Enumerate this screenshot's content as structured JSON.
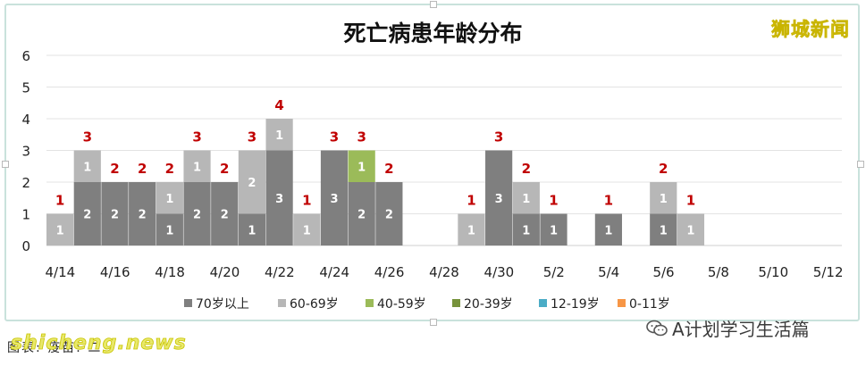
{
  "watermark_top": "狮城新闻",
  "caption": "图表: 疫苗: 二",
  "site_watermark": "shicheng.news",
  "wechat_name": "A计划学习生活篇",
  "colors": {
    "c70": "#7f7f7f",
    "c60": "#b7b7b7",
    "c40": "#9bbb59",
    "c20": "#77933c",
    "c12": "#4bacc6",
    "c0": "#f79646",
    "total_label": "#c00000"
  },
  "chart_data": {
    "type": "bar",
    "stacked": true,
    "title": "死亡病患年龄分布",
    "ylim": [
      0,
      6
    ],
    "yticks": [
      "0",
      "1",
      "2",
      "3",
      "4",
      "5",
      "6"
    ],
    "grid": true,
    "legend_position": "bottom",
    "xtick_labels": [
      "4/14",
      "4/16",
      "4/18",
      "4/20",
      "4/22",
      "4/24",
      "4/26",
      "4/28",
      "4/30",
      "5/2",
      "5/4",
      "5/6",
      "5/8",
      "5/10",
      "5/12"
    ],
    "categories": [
      "4/14",
      "4/15",
      "4/16",
      "4/17",
      "4/18",
      "4/19",
      "4/20",
      "4/21",
      "4/22",
      "4/23",
      "4/24",
      "4/25",
      "4/26",
      "4/27",
      "4/28",
      "4/29",
      "4/30",
      "5/1",
      "5/2",
      "5/3",
      "5/4",
      "5/5",
      "5/6",
      "5/7",
      "5/8",
      "5/9",
      "5/10",
      "5/11",
      "5/12"
    ],
    "series": [
      {
        "name": "70岁以上",
        "color_key": "c70",
        "values": [
          0,
          2,
          2,
          2,
          1,
          2,
          2,
          1,
          3,
          0,
          3,
          2,
          2,
          0,
          0,
          0,
          3,
          1,
          1,
          0,
          1,
          0,
          1,
          0,
          0,
          0,
          0,
          0,
          0
        ]
      },
      {
        "name": "60-69岁",
        "color_key": "c60",
        "values": [
          1,
          1,
          0,
          0,
          1,
          1,
          0,
          2,
          1,
          1,
          0,
          0,
          0,
          0,
          0,
          1,
          0,
          1,
          0,
          0,
          0,
          0,
          1,
          1,
          0,
          0,
          0,
          0,
          0
        ]
      },
      {
        "name": "40-59岁",
        "color_key": "c40",
        "values": [
          0,
          0,
          0,
          0,
          0,
          0,
          0,
          0,
          0,
          0,
          0,
          1,
          0,
          0,
          0,
          0,
          0,
          0,
          0,
          0,
          0,
          0,
          0,
          0,
          0,
          0,
          0,
          0,
          0
        ]
      },
      {
        "name": "20-39岁",
        "color_key": "c20",
        "values": [
          0,
          0,
          0,
          0,
          0,
          0,
          0,
          0,
          0,
          0,
          0,
          0,
          0,
          0,
          0,
          0,
          0,
          0,
          0,
          0,
          0,
          0,
          0,
          0,
          0,
          0,
          0,
          0,
          0
        ]
      },
      {
        "name": "12-19岁",
        "color_key": "c12",
        "values": [
          0,
          0,
          0,
          0,
          0,
          0,
          0,
          0,
          0,
          0,
          0,
          0,
          0,
          0,
          0,
          0,
          0,
          0,
          0,
          0,
          0,
          0,
          0,
          0,
          0,
          0,
          0,
          0,
          0
        ]
      },
      {
        "name": "0-11岁",
        "color_key": "c0",
        "values": [
          0,
          0,
          0,
          0,
          0,
          0,
          0,
          0,
          0,
          0,
          0,
          0,
          0,
          0,
          0,
          0,
          0,
          0,
          0,
          0,
          0,
          0,
          0,
          0,
          0,
          0,
          0,
          0,
          0
        ]
      }
    ],
    "totals": [
      1,
      3,
      2,
      2,
      2,
      3,
      2,
      3,
      4,
      1,
      3,
      3,
      2,
      0,
      0,
      1,
      3,
      2,
      1,
      0,
      1,
      0,
      2,
      1,
      0,
      0,
      0,
      0,
      0
    ]
  }
}
